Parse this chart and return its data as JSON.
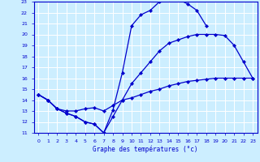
{
  "xlabel": "Graphe des températures (°c)",
  "background_color": "#cceeff",
  "grid_color": "#ffffff",
  "line_color": "#0000cc",
  "xlim": [
    -0.5,
    23.5
  ],
  "ylim": [
    11,
    23
  ],
  "xticks": [
    0,
    1,
    2,
    3,
    4,
    5,
    6,
    7,
    8,
    9,
    10,
    11,
    12,
    13,
    14,
    15,
    16,
    17,
    18,
    19,
    20,
    21,
    22,
    23
  ],
  "yticks": [
    11,
    12,
    13,
    14,
    15,
    16,
    17,
    18,
    19,
    20,
    21,
    22,
    23
  ],
  "line1_x": [
    0,
    1,
    2,
    3,
    4,
    5,
    6,
    7,
    8,
    9,
    10,
    11,
    12,
    13,
    14,
    15,
    16,
    17,
    18,
    19,
    20
  ],
  "line1_y": [
    14.5,
    14.0,
    13.2,
    12.8,
    12.5,
    12.0,
    11.8,
    11.0,
    13.1,
    16.5,
    20.8,
    21.8,
    22.2,
    23.0,
    23.2,
    23.2,
    22.8,
    22.2,
    20.8,
    null,
    null
  ],
  "line2_x": [
    0,
    1,
    2,
    3,
    4,
    5,
    6,
    7,
    8,
    9,
    10,
    11,
    12,
    13,
    14,
    15,
    16,
    17,
    18,
    19,
    20,
    21,
    22,
    23
  ],
  "line2_y": [
    14.5,
    14.0,
    13.2,
    12.8,
    12.5,
    12.0,
    11.8,
    11.0,
    12.5,
    14.0,
    15.5,
    16.5,
    17.5,
    18.5,
    19.2,
    19.5,
    19.8,
    20.0,
    20.0,
    20.0,
    19.9,
    19.0,
    17.5,
    16.0
  ],
  "line3_x": [
    0,
    1,
    2,
    3,
    4,
    5,
    6,
    7,
    8,
    9,
    10,
    11,
    12,
    13,
    14,
    15,
    16,
    17,
    18,
    19,
    20,
    21,
    22,
    23
  ],
  "line3_y": [
    14.5,
    14.0,
    13.2,
    13.0,
    13.0,
    13.2,
    13.3,
    13.0,
    13.5,
    14.0,
    14.2,
    14.5,
    14.8,
    15.0,
    15.3,
    15.5,
    15.7,
    15.8,
    15.9,
    16.0,
    16.0,
    16.0,
    16.0,
    16.0
  ]
}
